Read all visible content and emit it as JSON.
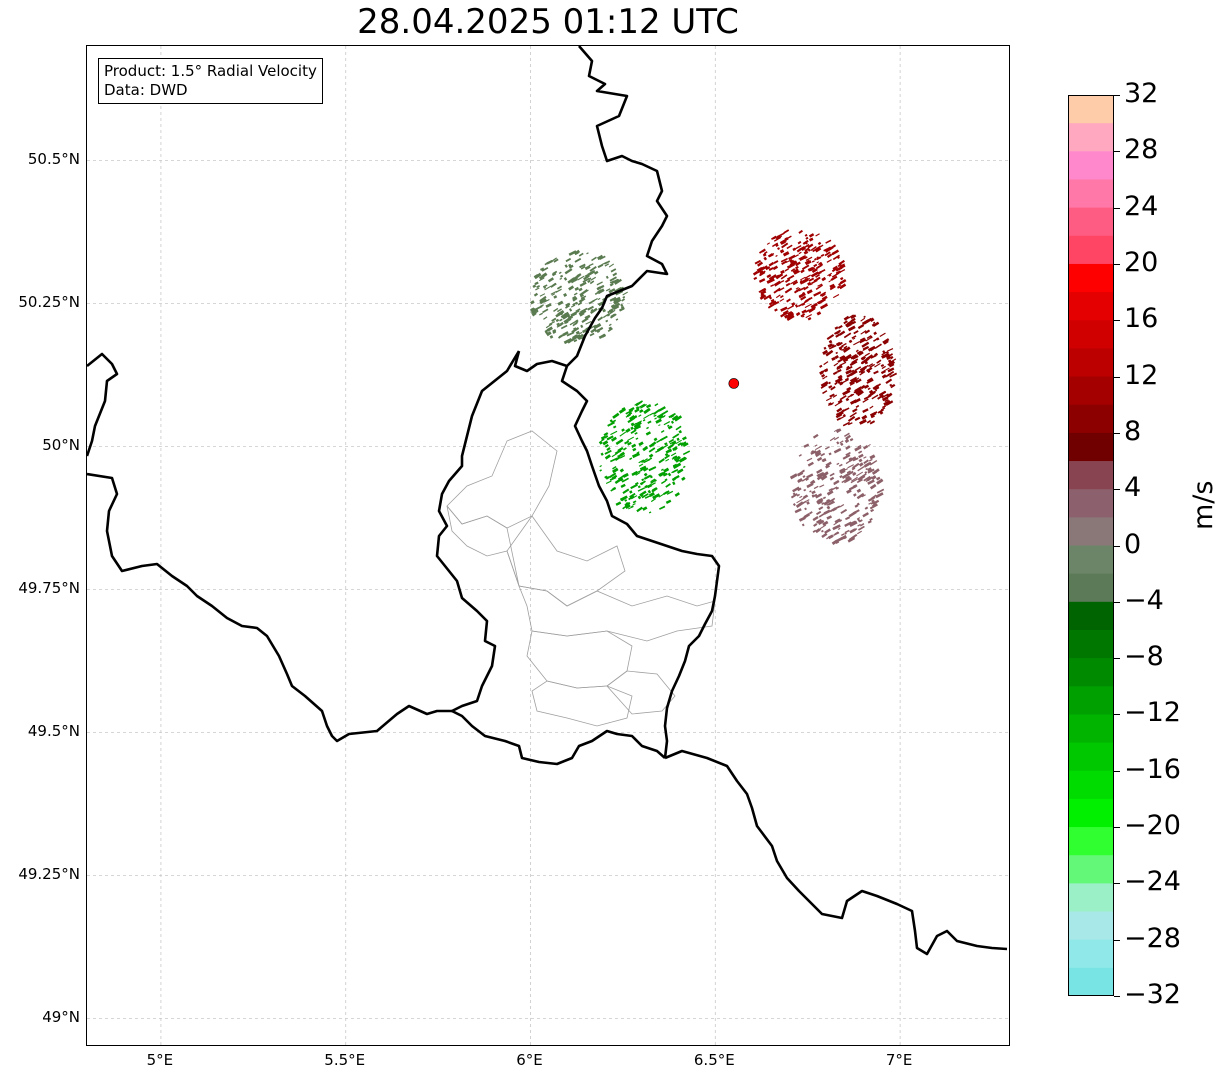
{
  "title": "28.04.2025 01:12 UTC",
  "info": {
    "product": "Product: 1.5° Radial Velocity",
    "data": "Data: DWD"
  },
  "map": {
    "lon_range": [
      4.8,
      7.3
    ],
    "lat_range": [
      48.95,
      50.7
    ],
    "radar_site": {
      "lon": 6.55,
      "lat": 50.11,
      "color": "#ff0000"
    },
    "lat_ticks": [
      {
        "value": 50.5,
        "label": "50.5°N"
      },
      {
        "value": 50.25,
        "label": "50.25°N"
      },
      {
        "value": 50.0,
        "label": "50°N"
      },
      {
        "value": 49.75,
        "label": "49.75°N"
      },
      {
        "value": 49.5,
        "label": "49.5°N"
      },
      {
        "value": 49.25,
        "label": "49.25°N"
      },
      {
        "value": 49.0,
        "label": "49°N"
      }
    ],
    "lon_ticks": [
      {
        "value": 5.0,
        "label": "5°E"
      },
      {
        "value": 5.5,
        "label": "5.5°E"
      },
      {
        "value": 6.0,
        "label": "6°E"
      },
      {
        "value": 6.5,
        "label": "6.5°E"
      },
      {
        "value": 7.0,
        "label": "7°E"
      }
    ],
    "grid": true,
    "echo_regions": [
      {
        "name": "outbound-north",
        "lon": 6.72,
        "lat": 50.3,
        "rx": 0.12,
        "ry": 0.08,
        "color": "#a00000"
      },
      {
        "name": "outbound-east",
        "lon": 6.88,
        "lat": 50.13,
        "rx": 0.1,
        "ry": 0.1,
        "color": "#8b0000"
      },
      {
        "name": "weak-outbound-southeast",
        "lon": 6.82,
        "lat": 49.93,
        "rx": 0.12,
        "ry": 0.1,
        "color": "#8c6068"
      },
      {
        "name": "inbound-southwest",
        "lon": 6.3,
        "lat": 49.98,
        "rx": 0.12,
        "ry": 0.1,
        "color": "#00a000"
      },
      {
        "name": "weak-inbound-northwest",
        "lon": 6.12,
        "lat": 50.26,
        "rx": 0.13,
        "ry": 0.08,
        "color": "#5a7a50"
      }
    ]
  },
  "colorbar": {
    "unit": "m/s",
    "min": -32,
    "max": 32,
    "ticks": [
      "32",
      "28",
      "24",
      "20",
      "16",
      "12",
      "8",
      "4",
      "0",
      "−4",
      "−8",
      "−12",
      "−16",
      "−20",
      "−24",
      "−28",
      "−32"
    ],
    "colors_top_to_bottom": [
      "#ffccaa",
      "#ffa8c0",
      "#ff88cc",
      "#ff78a8",
      "#ff5c84",
      "#ff4464",
      "#ff0000",
      "#e40000",
      "#d00000",
      "#bc0000",
      "#a40000",
      "#8c0000",
      "#700000",
      "#884450",
      "#8c606c",
      "#8a7878",
      "#6c8468",
      "#5c7a58",
      "#006400",
      "#007800",
      "#008a00",
      "#00a000",
      "#00b400",
      "#00c800",
      "#00dc00",
      "#00f000",
      "#30ff30",
      "#64f878",
      "#9cf0c8",
      "#a8e8e8",
      "#90e8e8",
      "#78e4e4"
    ]
  }
}
